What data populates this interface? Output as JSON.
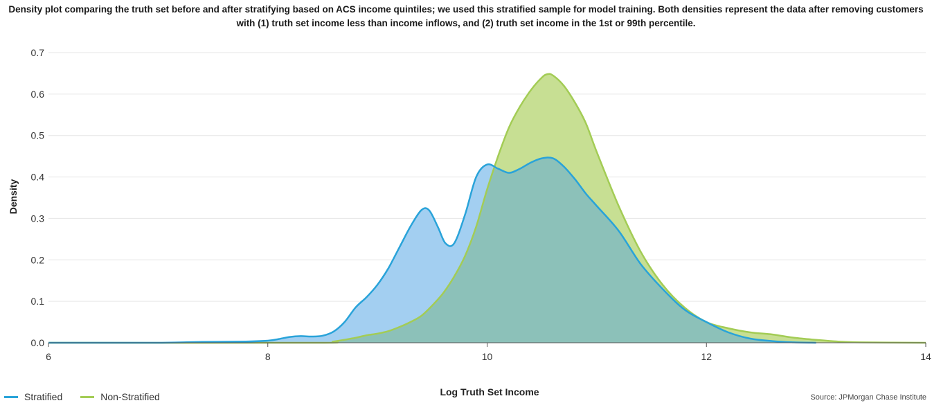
{
  "title": "Density plot comparing the truth set before and after stratifying based on ACS income quintiles; we used this stratified sample for model training. Both densities represent the data after removing customers with (1) truth set income less than income inflows, and (2) truth set income in the 1st or 99th percentile.",
  "source": "Source: JPMorgan Chase Institute",
  "legend": {
    "stratified": "Stratified",
    "non_stratified": "Non-Stratified"
  },
  "colors": {
    "stratified_line": "#29a3d9",
    "stratified_fill": "#a3cff1",
    "non_stratified_line": "#a3cc55",
    "non_stratified_fill": "#c7df93",
    "overlap_fill": "#8cc1b9",
    "grid": "#e6e6e6",
    "axis": "#555555"
  },
  "chart_data": {
    "type": "area",
    "xlabel": "Log Truth Set Income",
    "ylabel": "Density",
    "xlim": [
      6,
      14
    ],
    "ylim": [
      0,
      0.7
    ],
    "xticks": [
      "6",
      "8",
      "10",
      "12",
      "14"
    ],
    "yticks": [
      "0.0",
      "0.1",
      "0.2",
      "0.3",
      "0.4",
      "0.5",
      "0.6",
      "0.7"
    ],
    "grid": "horizontal",
    "legend_position": "bottom-left",
    "series": [
      {
        "name": "Stratified",
        "x": [
          6.0,
          6.5,
          7.0,
          7.4,
          7.8,
          8.0,
          8.1,
          8.2,
          8.3,
          8.4,
          8.5,
          8.6,
          8.7,
          8.8,
          8.9,
          9.0,
          9.1,
          9.2,
          9.3,
          9.4,
          9.47,
          9.55,
          9.62,
          9.7,
          9.8,
          9.9,
          10.0,
          10.1,
          10.2,
          10.3,
          10.4,
          10.5,
          10.6,
          10.7,
          10.8,
          10.9,
          11.0,
          11.2,
          11.4,
          11.6,
          11.8,
          12.0,
          12.2,
          12.4,
          12.6,
          12.8,
          13.0
        ],
        "values": [
          0.0,
          0.0,
          0.0,
          0.002,
          0.003,
          0.005,
          0.009,
          0.014,
          0.016,
          0.015,
          0.017,
          0.027,
          0.05,
          0.085,
          0.11,
          0.14,
          0.18,
          0.23,
          0.28,
          0.32,
          0.32,
          0.28,
          0.24,
          0.24,
          0.31,
          0.4,
          0.43,
          0.42,
          0.41,
          0.42,
          0.435,
          0.445,
          0.445,
          0.425,
          0.395,
          0.36,
          0.33,
          0.27,
          0.19,
          0.13,
          0.08,
          0.05,
          0.025,
          0.01,
          0.004,
          0.001,
          0.0
        ]
      },
      {
        "name": "Non-Stratified",
        "x": [
          6.0,
          8.4,
          8.6,
          8.8,
          8.9,
          9.0,
          9.1,
          9.2,
          9.3,
          9.4,
          9.5,
          9.6,
          9.7,
          9.8,
          9.9,
          10.0,
          10.1,
          10.2,
          10.3,
          10.4,
          10.5,
          10.55,
          10.6,
          10.7,
          10.8,
          10.9,
          11.0,
          11.2,
          11.4,
          11.6,
          11.8,
          12.0,
          12.2,
          12.4,
          12.6,
          12.8,
          13.0,
          13.2,
          13.4,
          14.0
        ],
        "values": [
          0.0,
          0.0,
          0.003,
          0.012,
          0.018,
          0.022,
          0.028,
          0.038,
          0.05,
          0.065,
          0.09,
          0.12,
          0.16,
          0.21,
          0.28,
          0.37,
          0.45,
          0.52,
          0.57,
          0.61,
          0.64,
          0.648,
          0.645,
          0.62,
          0.58,
          0.53,
          0.46,
          0.33,
          0.22,
          0.14,
          0.085,
          0.05,
          0.035,
          0.025,
          0.02,
          0.012,
          0.007,
          0.003,
          0.001,
          0.0
        ]
      }
    ]
  }
}
